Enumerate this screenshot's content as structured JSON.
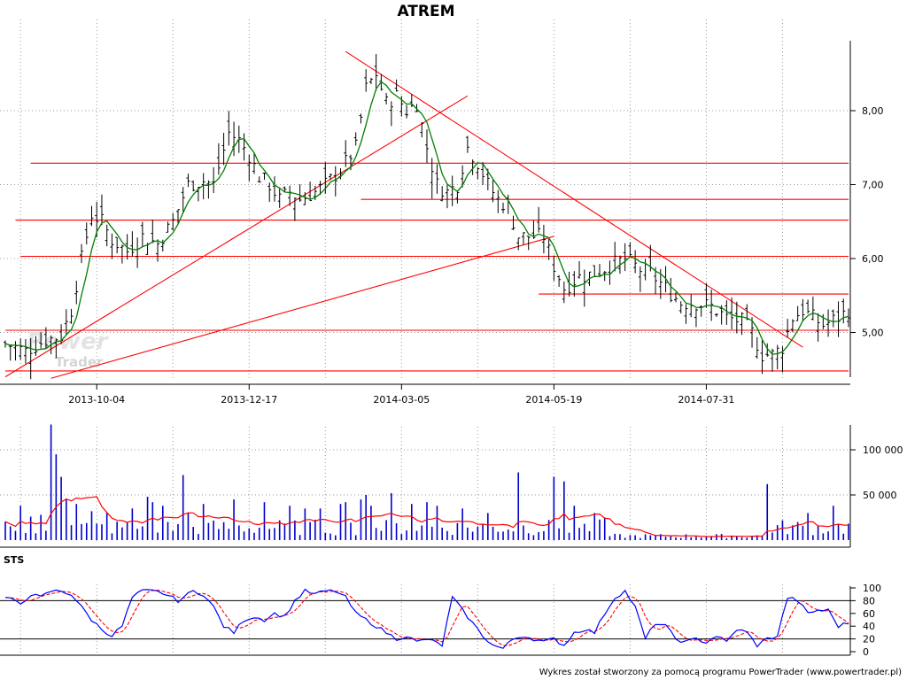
{
  "title": "ATREM",
  "watermark": {
    "line1": "Power",
    "line2": "Trader"
  },
  "footer": "Wykres został stworzony za pomocą programu PowerTrader (www.powertrader.pl)",
  "chart_data": [
    {
      "type": "line",
      "panel": "price",
      "chart_style": "ohlc-bars",
      "title": "ATREM",
      "x_tick_labels": [
        "2013-10-04",
        "2013-12-17",
        "2014-03-05",
        "2014-05-19",
        "2014-07-31"
      ],
      "y_tick_labels": [
        "5,00",
        "6,00",
        "7,00",
        "8,00"
      ],
      "ylim": [
        4.35,
        8.95
      ],
      "grid": true,
      "colors": {
        "bars": "#000000",
        "moving_average": "#008000",
        "trendlines": "#ff0000"
      },
      "close_anchors": [
        [
          0,
          4.85
        ],
        [
          4,
          4.75
        ],
        [
          8,
          4.9
        ],
        [
          11,
          4.95
        ],
        [
          13,
          5.3
        ],
        [
          15,
          6.0
        ],
        [
          17,
          6.6
        ],
        [
          19,
          6.5
        ],
        [
          21,
          6.25
        ],
        [
          24,
          6.1
        ],
        [
          27,
          6.3
        ],
        [
          30,
          6.2
        ],
        [
          33,
          6.5
        ],
        [
          36,
          7.0
        ],
        [
          39,
          7.05
        ],
        [
          41,
          7.0
        ],
        [
          44,
          7.7
        ],
        [
          46,
          7.6
        ],
        [
          48,
          7.4
        ],
        [
          50,
          7.1
        ],
        [
          52,
          7.0
        ],
        [
          54,
          6.8
        ],
        [
          56,
          6.9
        ],
        [
          58,
          6.8
        ],
        [
          61,
          6.9
        ],
        [
          63,
          7.0
        ],
        [
          66,
          7.2
        ],
        [
          69,
          7.5
        ],
        [
          71,
          8.3
        ],
        [
          73,
          8.5
        ],
        [
          75,
          8.1
        ],
        [
          77,
          8.2
        ],
        [
          79,
          8.0
        ],
        [
          81,
          8.1
        ],
        [
          83,
          7.5
        ],
        [
          85,
          7.0
        ],
        [
          87,
          6.9
        ],
        [
          89,
          7.0
        ],
        [
          91,
          7.5
        ],
        [
          93,
          7.3
        ],
        [
          95,
          7.0
        ],
        [
          97,
          6.8
        ],
        [
          99,
          6.7
        ],
        [
          101,
          6.3
        ],
        [
          104,
          6.3
        ],
        [
          106,
          6.3
        ],
        [
          108,
          5.9
        ],
        [
          110,
          5.6
        ],
        [
          113,
          5.75
        ],
        [
          116,
          5.8
        ],
        [
          119,
          5.9
        ],
        [
          122,
          6.0
        ],
        [
          125,
          5.85
        ],
        [
          127,
          5.8
        ],
        [
          130,
          5.6
        ],
        [
          133,
          5.4
        ],
        [
          136,
          5.4
        ],
        [
          139,
          5.35
        ],
        [
          142,
          5.2
        ],
        [
          145,
          5.15
        ],
        [
          147,
          5.0
        ],
        [
          149,
          4.7
        ],
        [
          151,
          4.7
        ],
        [
          153,
          4.8
        ],
        [
          155,
          5.2
        ],
        [
          157,
          5.3
        ],
        [
          159,
          5.2
        ],
        [
          161,
          5.1
        ],
        [
          164,
          5.2
        ],
        [
          166,
          5.3
        ]
      ],
      "lines": [
        {
          "from": [
            0,
            4.4
          ],
          "to": [
            91,
            8.2
          ]
        },
        {
          "from": [
            9,
            4.38
          ],
          "to": [
            108,
            6.3
          ]
        },
        {
          "from": [
            67,
            8.8
          ],
          "to": [
            157,
            4.8
          ]
        }
      ],
      "horizontal_levels": [
        {
          "y": 7.29,
          "x_from": 5,
          "x_to": 166
        },
        {
          "y": 6.8,
          "x_from": 70,
          "x_to": 166
        },
        {
          "y": 6.52,
          "x_from": 2,
          "x_to": 166
        },
        {
          "y": 6.03,
          "x_from": 3,
          "x_to": 166
        },
        {
          "y": 5.52,
          "x_from": 105,
          "x_to": 166
        },
        {
          "y": 5.03,
          "x_from": 0,
          "x_to": 166
        },
        {
          "y": 4.48,
          "x_from": 0,
          "x_to": 166
        }
      ]
    },
    {
      "type": "bar",
      "panel": "volume",
      "y_tick_labels": [
        "50 000",
        "100 000"
      ],
      "ylim": [
        0,
        130000
      ],
      "grid": true,
      "colors": {
        "bars": "#0000cc",
        "moving_average": "#ff0000"
      },
      "spikes": [
        [
          3,
          38000
        ],
        [
          5,
          26000
        ],
        [
          7,
          28000
        ],
        [
          9,
          128000
        ],
        [
          10,
          95000
        ],
        [
          11,
          70000
        ],
        [
          12,
          45000
        ],
        [
          14,
          40000
        ],
        [
          17,
          32000
        ],
        [
          20,
          30000
        ],
        [
          25,
          35000
        ],
        [
          28,
          48000
        ],
        [
          29,
          42000
        ],
        [
          31,
          38000
        ],
        [
          35,
          72000
        ],
        [
          36,
          30000
        ],
        [
          39,
          40000
        ],
        [
          45,
          45000
        ],
        [
          51,
          42000
        ],
        [
          56,
          38000
        ],
        [
          59,
          35000
        ],
        [
          62,
          35000
        ],
        [
          66,
          40000
        ],
        [
          67,
          42000
        ],
        [
          70,
          45000
        ],
        [
          71,
          50000
        ],
        [
          72,
          38000
        ],
        [
          76,
          52000
        ],
        [
          80,
          40000
        ],
        [
          83,
          42000
        ],
        [
          85,
          38000
        ],
        [
          90,
          35000
        ],
        [
          95,
          30000
        ],
        [
          101,
          75000
        ],
        [
          108,
          70000
        ],
        [
          110,
          65000
        ],
        [
          112,
          38000
        ],
        [
          116,
          30000
        ],
        [
          118,
          25000
        ],
        [
          150,
          62000
        ],
        [
          158,
          30000
        ],
        [
          163,
          38000
        ]
      ]
    },
    {
      "type": "line",
      "panel": "oscillator",
      "title": "STS",
      "y_tick_labels": [
        "0",
        "20",
        "40",
        "60",
        "80",
        "100"
      ],
      "ylim": [
        0,
        100
      ],
      "reference_levels": [
        20,
        80
      ],
      "colors": {
        "fast": "#0000ff",
        "slow": "#ff0000",
        "reference_lines": "#000000"
      },
      "series": [
        {
          "values_anchors": [
            [
              0,
              85
            ],
            [
              3,
              75
            ],
            [
              5,
              90
            ],
            [
              7,
              85
            ],
            [
              9,
              95
            ],
            [
              11,
              95
            ],
            [
              13,
              90
            ],
            [
              15,
              70
            ],
            [
              17,
              50
            ],
            [
              19,
              35
            ],
            [
              21,
              25
            ],
            [
              23,
              40
            ],
            [
              25,
              85
            ],
            [
              27,
              95
            ],
            [
              29,
              95
            ],
            [
              31,
              92
            ],
            [
              34,
              80
            ],
            [
              37,
              95
            ],
            [
              39,
              90
            ],
            [
              41,
              70
            ],
            [
              43,
              40
            ],
            [
              45,
              30
            ],
            [
              47,
              50
            ],
            [
              49,
              55
            ],
            [
              51,
              50
            ],
            [
              53,
              60
            ],
            [
              55,
              55
            ],
            [
              57,
              80
            ],
            [
              59,
              95
            ],
            [
              61,
              90
            ],
            [
              63,
              95
            ],
            [
              65,
              95
            ],
            [
              67,
              85
            ],
            [
              69,
              60
            ],
            [
              71,
              50
            ],
            [
              73,
              40
            ],
            [
              75,
              30
            ],
            [
              77,
              20
            ],
            [
              79,
              25
            ],
            [
              81,
              15
            ],
            [
              83,
              20
            ],
            [
              86,
              10
            ],
            [
              88,
              85
            ],
            [
              90,
              65
            ],
            [
              92,
              45
            ],
            [
              94,
              25
            ],
            [
              96,
              10
            ],
            [
              98,
              5
            ],
            [
              100,
              20
            ],
            [
              102,
              25
            ],
            [
              104,
              20
            ],
            [
              106,
              15
            ],
            [
              108,
              20
            ],
            [
              110,
              10
            ],
            [
              112,
              30
            ],
            [
              114,
              35
            ],
            [
              116,
              30
            ],
            [
              118,
              60
            ],
            [
              120,
              85
            ],
            [
              122,
              95
            ],
            [
              124,
              70
            ],
            [
              126,
              20
            ],
            [
              128,
              45
            ],
            [
              130,
              40
            ],
            [
              132,
              20
            ],
            [
              134,
              15
            ],
            [
              136,
              20
            ],
            [
              138,
              15
            ],
            [
              140,
              25
            ],
            [
              142,
              15
            ],
            [
              144,
              35
            ],
            [
              146,
              30
            ],
            [
              148,
              10
            ],
            [
              150,
              20
            ],
            [
              152,
              25
            ],
            [
              154,
              85
            ],
            [
              156,
              80
            ],
            [
              158,
              60
            ],
            [
              160,
              65
            ],
            [
              162,
              65
            ],
            [
              164,
              40
            ],
            [
              166,
              45
            ]
          ]
        },
        {
          "derived_from": 0,
          "smoothing": 3
        }
      ]
    }
  ]
}
